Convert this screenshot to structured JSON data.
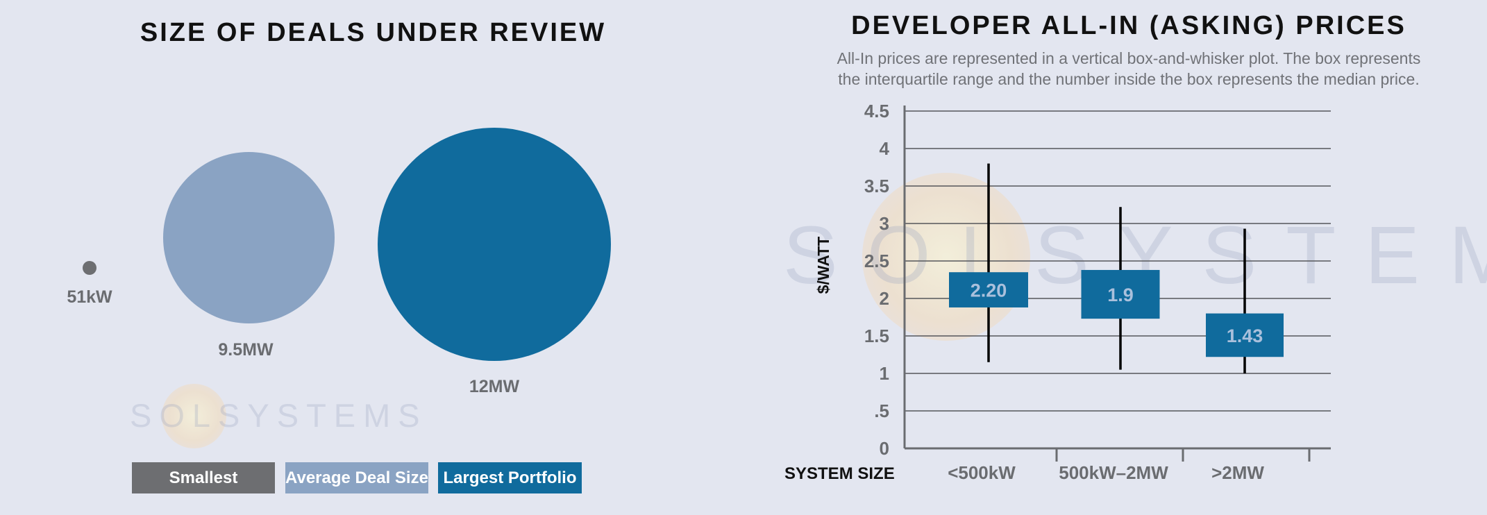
{
  "left": {
    "title": "SIZE OF DEALS UNDER REVIEW",
    "bubbles": [
      {
        "label": "51kW",
        "color": "#6d6e71"
      },
      {
        "label": "9.5MW",
        "color": "#8aa3c3"
      },
      {
        "label": "12MW",
        "color": "#106b9d"
      }
    ],
    "legend": [
      {
        "label": "Smallest",
        "color": "#6d6e71"
      },
      {
        "label": "Average Deal Size",
        "color": "#8aa3c3"
      },
      {
        "label": "Largest Portfolio",
        "color": "#106b9d"
      }
    ],
    "watermark": "SOLSYSTEMS"
  },
  "right": {
    "title": "DEVELOPER ALL-IN (ASKING) PRICES",
    "subtitle_line1": "All-In prices are represented in a vertical box-and-whisker plot. The box represents",
    "subtitle_line2": "the interquartile range and the number inside the box represents the median price.",
    "watermark": "SOLSYSTEMS"
  },
  "chart_data": [
    {
      "type": "bubble",
      "title": "SIZE OF DEALS UNDER REVIEW",
      "categories": [
        "Smallest",
        "Average Deal Size",
        "Largest Portfolio"
      ],
      "values_kw": [
        51,
        9500,
        12000
      ],
      "labels": [
        "51kW",
        "9.5MW",
        "12MW"
      ]
    },
    {
      "type": "boxplot",
      "title": "DEVELOPER ALL-IN (ASKING) PRICES",
      "xlabel": "SYSTEM SIZE",
      "ylabel": "$/WATT",
      "ylim": [
        0,
        4.5
      ],
      "y_ticks": [
        "0",
        ".5",
        "1",
        "1.5",
        "2",
        "2.5",
        "3",
        "3.5",
        "4",
        "4.5"
      ],
      "y_tick_values": [
        0,
        0.5,
        1,
        1.5,
        2,
        2.5,
        3,
        3.5,
        4,
        4.5
      ],
      "categories": [
        "<500kW",
        "500kW–2MW",
        ">2MW"
      ],
      "boxes": [
        {
          "whisker_low": 1.15,
          "q1": 1.88,
          "median_label": "2.20",
          "q3": 2.35,
          "whisker_high": 3.8
        },
        {
          "whisker_low": 1.05,
          "q1": 1.73,
          "median_label": "1.9",
          "q3": 2.38,
          "whisker_high": 3.22
        },
        {
          "whisker_low": 1.0,
          "q1": 1.22,
          "median_label": "1.43",
          "q3": 1.8,
          "whisker_high": 2.93
        }
      ],
      "grid": true,
      "box_color": "#106b9d",
      "median_label_color": "#aac0dc"
    }
  ]
}
